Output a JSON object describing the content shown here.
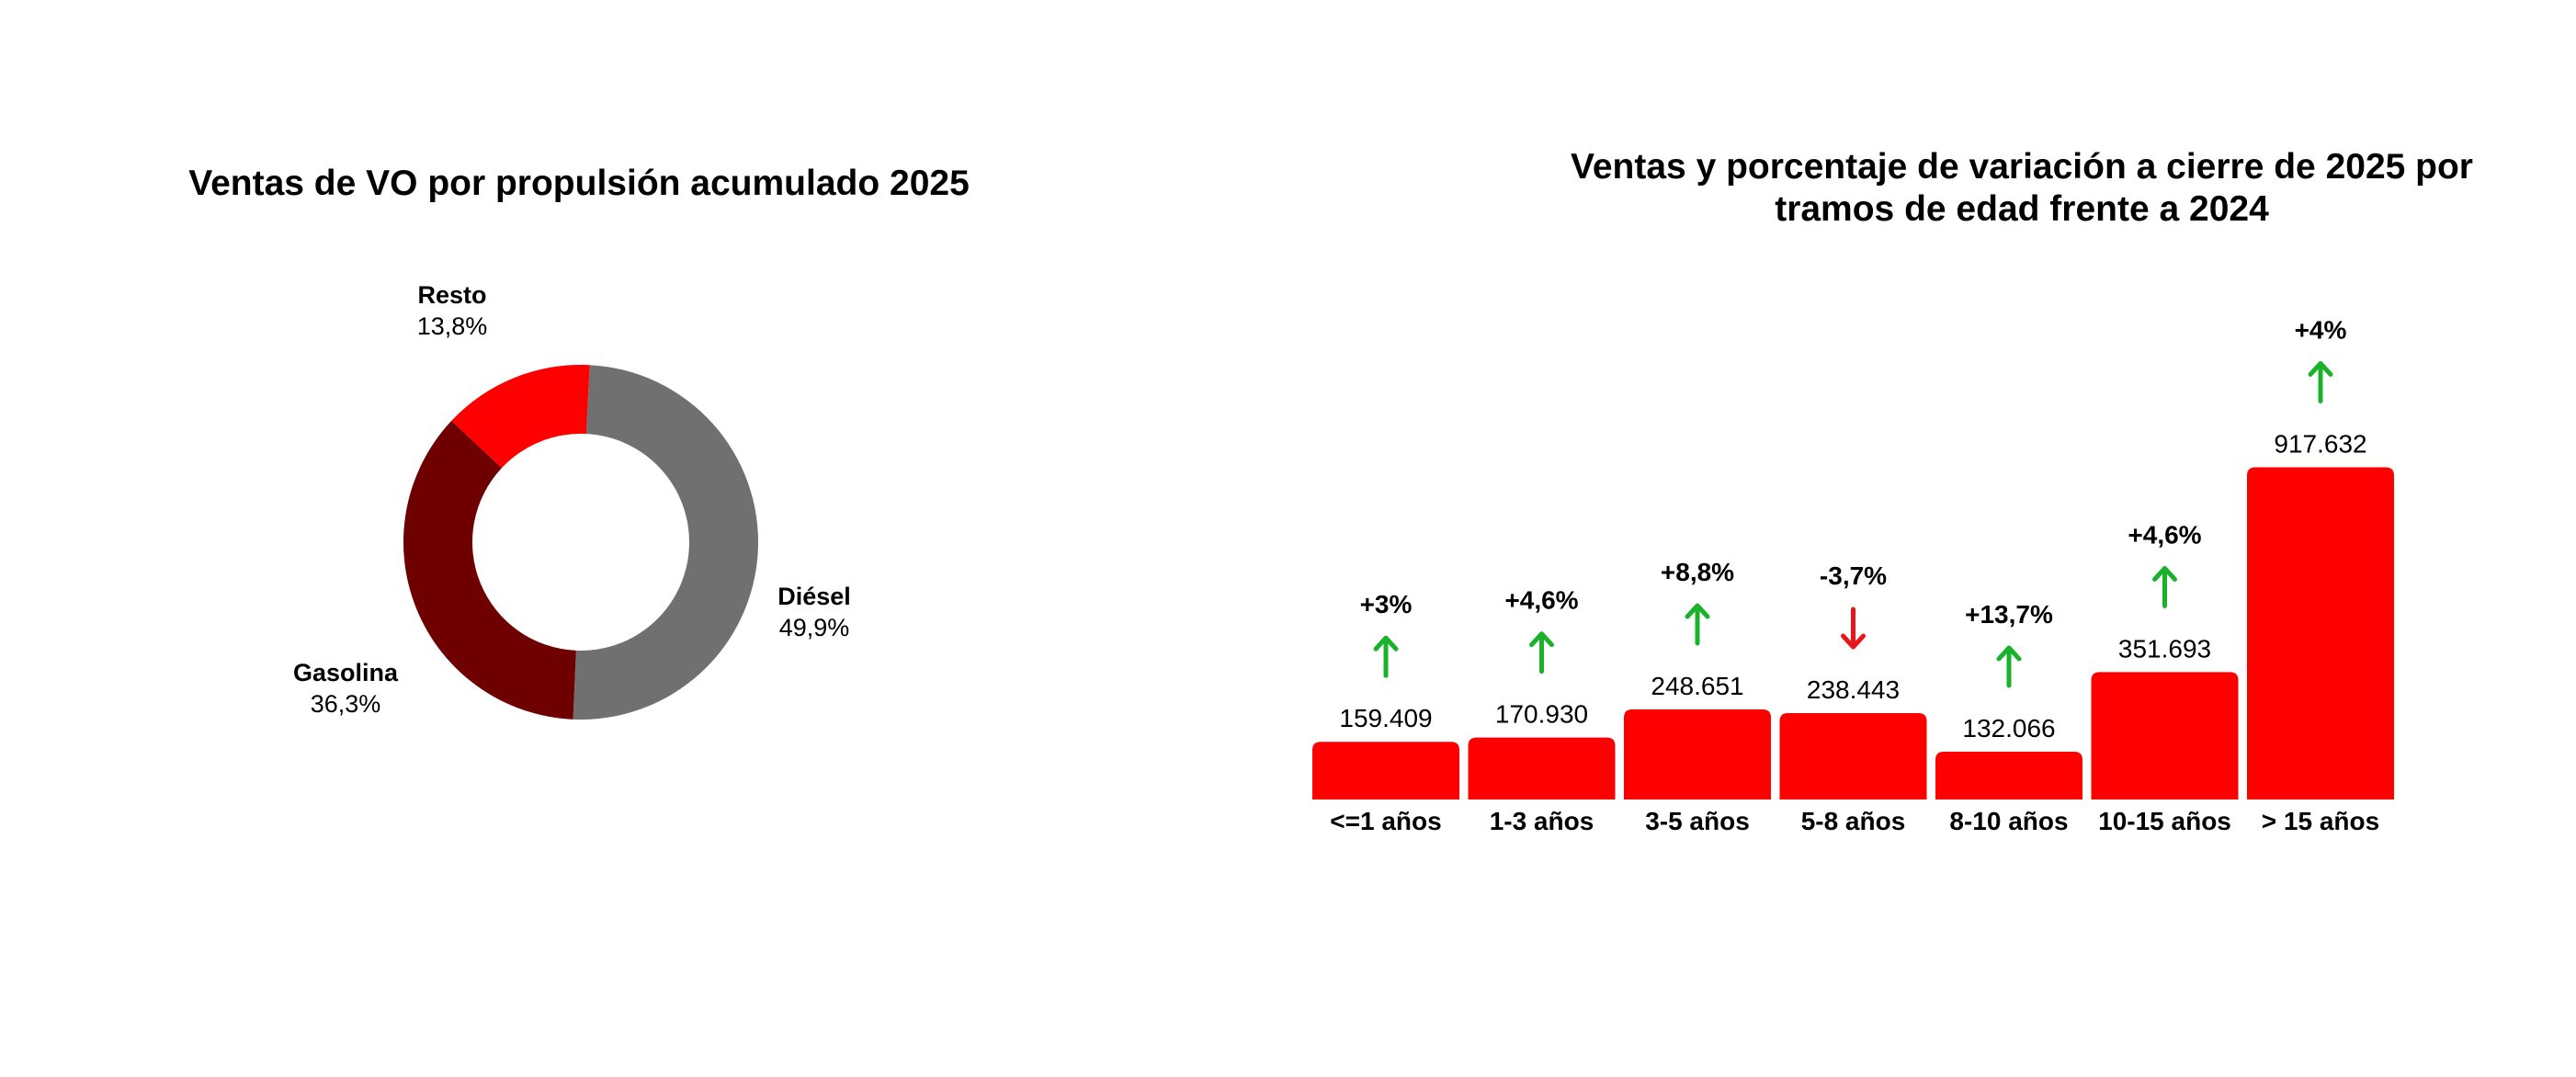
{
  "chart_data": [
    {
      "type": "pie",
      "title": "Ventas de VO por propulsión acumulado 2025",
      "slices": [
        {
          "name": "Diésel",
          "value": 49.9,
          "label": "49,9%",
          "color": "#707070"
        },
        {
          "name": "Gasolina",
          "value": 36.3,
          "label": "36,3%",
          "color": "#6e0000"
        },
        {
          "name": "Resto",
          "value": 13.8,
          "label": "13,8%",
          "color": "#ff0000"
        }
      ]
    },
    {
      "type": "bar",
      "title_lines": [
        "Ventas y porcentaje de variación a cierre de 2025 por",
        "tramos de edad frente a 2024"
      ],
      "categories": [
        "<=1 años",
        "1-3 años",
        "3-5 años",
        "5-8 años",
        "8-10 años",
        "10-15 años",
        "> 15 años"
      ],
      "values": [
        159409,
        170930,
        248651,
        238443,
        132066,
        351693,
        917632
      ],
      "value_labels": [
        "159.409",
        "170.930",
        "248.651",
        "238.443",
        "132.066",
        "351.693",
        "917.632"
      ],
      "variations": [
        3,
        4.6,
        8.8,
        -3.7,
        13.7,
        4.6,
        4
      ],
      "variation_labels": [
        "+3%",
        "+4,6%",
        "+8,8%",
        "-3,7%",
        "+13,7%",
        "+4,6%",
        "+4%"
      ],
      "bar_color": "#ff0000",
      "up_color": "#19b22a",
      "down_color": "#e8161b"
    }
  ]
}
